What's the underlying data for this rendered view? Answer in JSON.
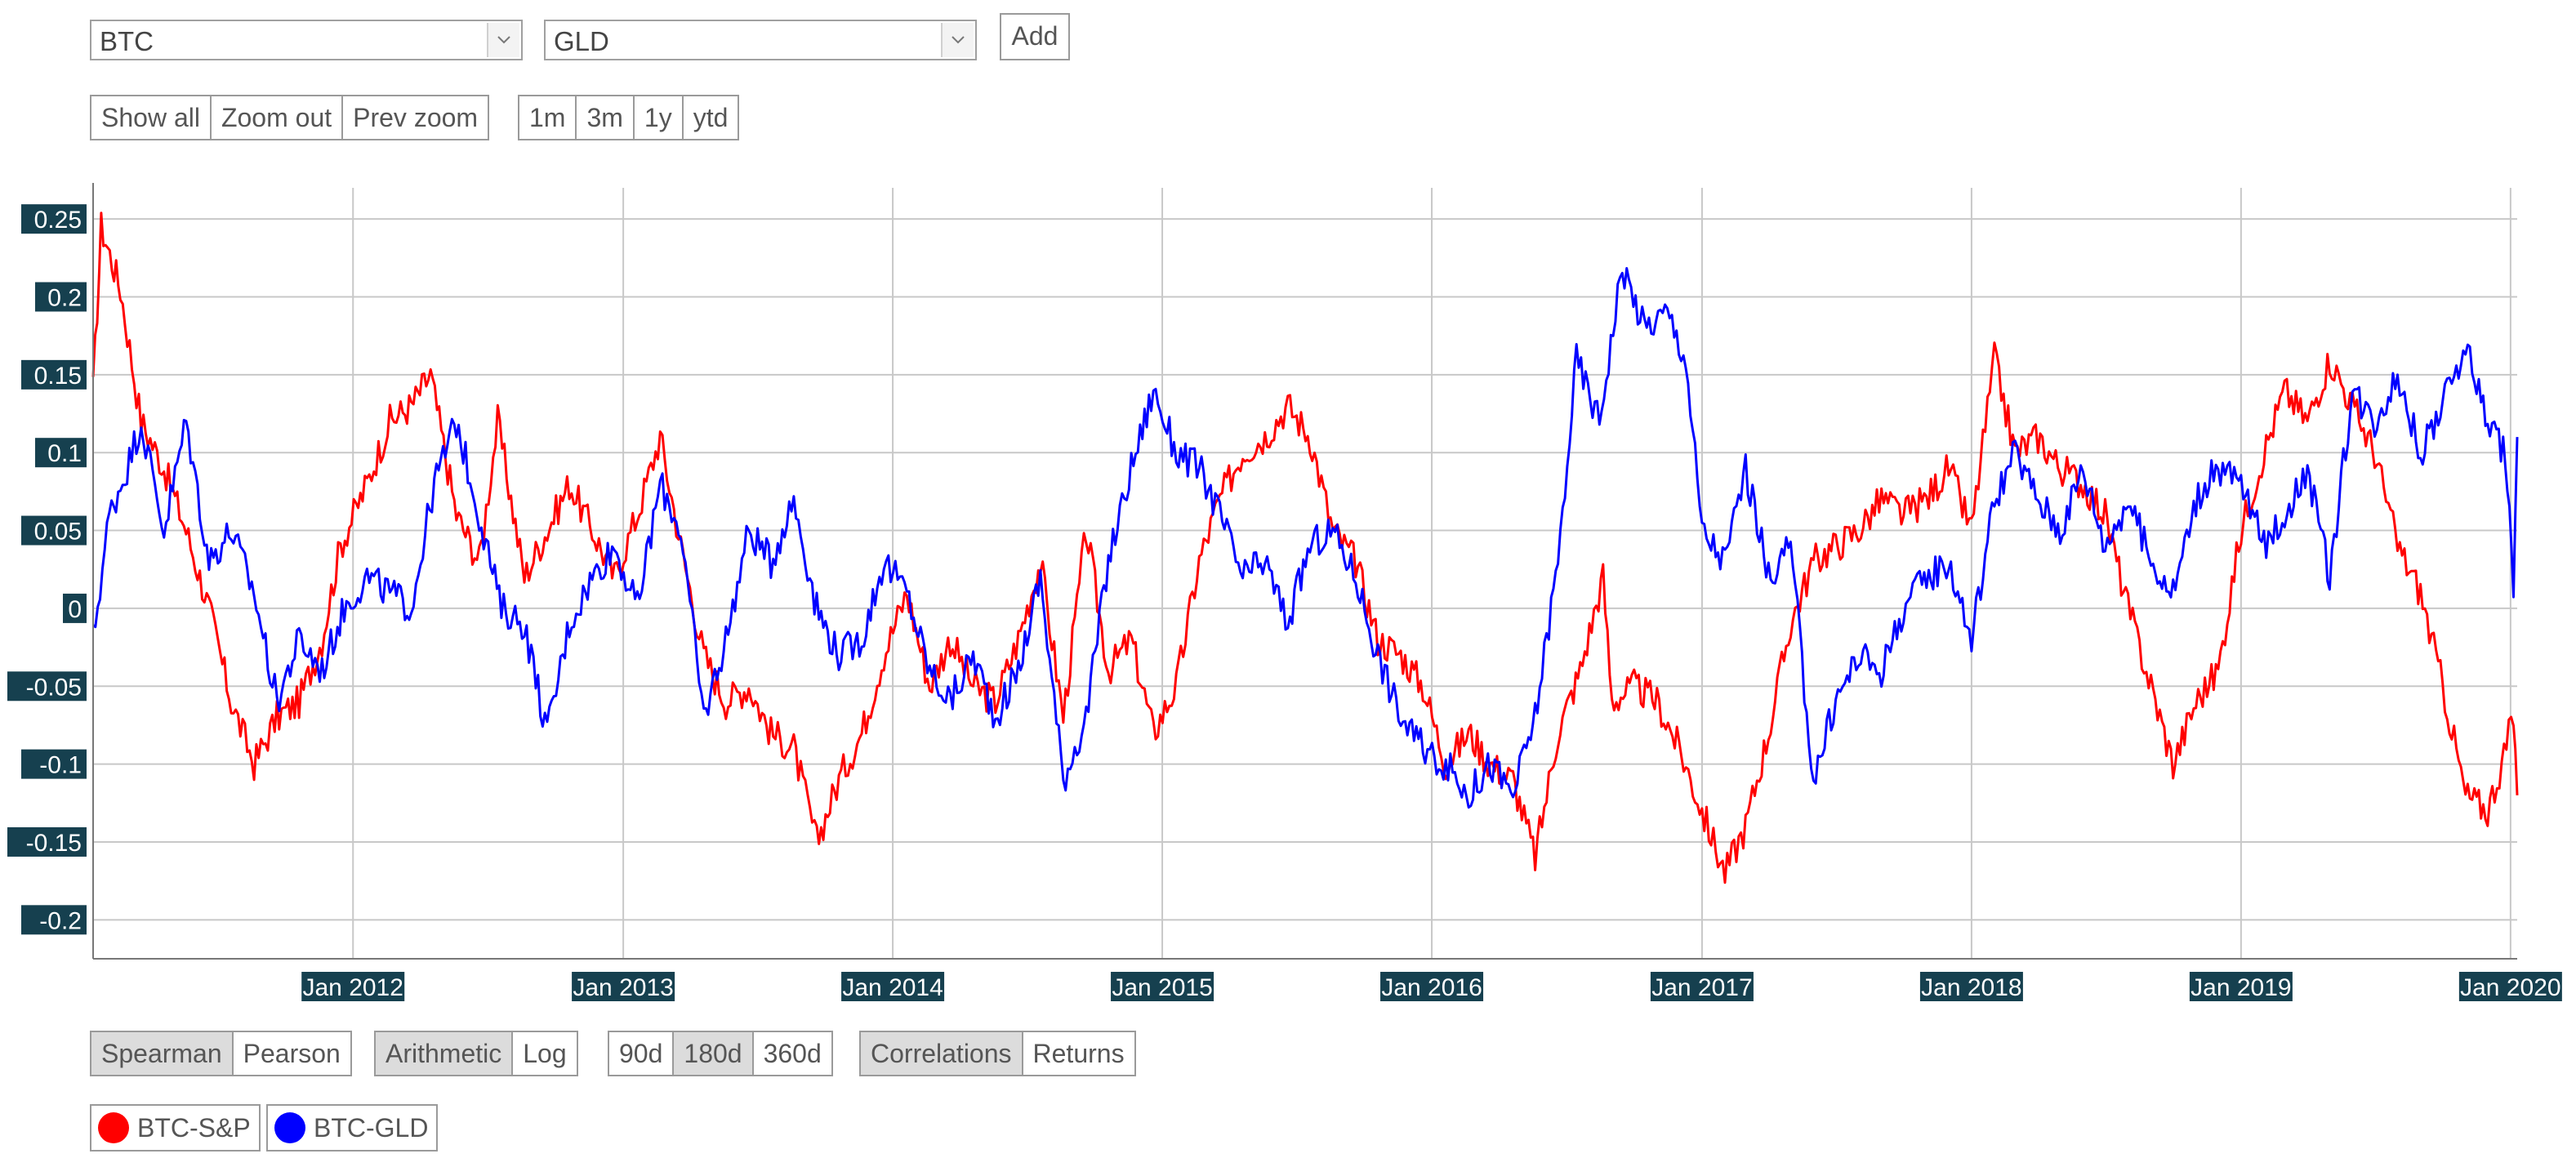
{
  "controls": {
    "asset1": "BTC",
    "asset2": "GLD",
    "add_label": "Add",
    "zoom_buttons": [
      "Show all",
      "Zoom out",
      "Prev zoom"
    ],
    "range_buttons": [
      "1m",
      "3m",
      "1y",
      "ytd"
    ]
  },
  "options": {
    "method": {
      "items": [
        "Spearman",
        "Pearson"
      ],
      "active": "Spearman"
    },
    "scale": {
      "items": [
        "Arithmetic",
        "Log"
      ],
      "active": "Arithmetic"
    },
    "window": {
      "items": [
        "90d",
        "180d",
        "360d"
      ],
      "active": "180d"
    },
    "view": {
      "items": [
        "Correlations",
        "Returns"
      ],
      "active": "Correlations"
    }
  },
  "colors": {
    "btc_sp": "#ff0000",
    "btc_gld": "#0000ff",
    "tick_bg": "#16404f",
    "tick_text": "#ffffff",
    "grid": "#c8c8c8"
  },
  "chart_data": {
    "type": "line",
    "x_ticks": [
      "Jan 2012",
      "Jan 2013",
      "Jan 2014",
      "Jan 2015",
      "Jan 2016",
      "Jan 2017",
      "Jan 2018",
      "Jan 2019",
      "Jan 2020"
    ],
    "y_ticks": [
      "0.25",
      "0.2",
      "0.15",
      "0.1",
      "0.05",
      "0",
      "-0.05",
      "-0.1",
      "-0.15",
      "-0.2"
    ],
    "ylim": [
      -0.225,
      0.27
    ],
    "xlim": [
      "2011-01-14",
      "2020-01-10"
    ],
    "grid": true,
    "series": [
      {
        "name": "BTC-S&P",
        "color": "#ff0000",
        "points": [
          [
            "2011-01-14",
            0.14
          ],
          [
            "2011-01-25",
            0.245
          ],
          [
            "2011-02-20",
            0.205
          ],
          [
            "2011-03-20",
            0.12
          ],
          [
            "2011-04-20",
            0.09
          ],
          [
            "2011-05-20",
            0.05
          ],
          [
            "2011-06-20",
            0.0
          ],
          [
            "2011-07-20",
            -0.06
          ],
          [
            "2011-08-20",
            -0.1
          ],
          [
            "2011-09-20",
            -0.07
          ],
          [
            "2011-10-20",
            -0.06
          ],
          [
            "2011-11-20",
            -0.02
          ],
          [
            "2011-12-15",
            0.04
          ],
          [
            "2012-01-20",
            0.08
          ],
          [
            "2012-02-20",
            0.12
          ],
          [
            "2012-03-20",
            0.13
          ],
          [
            "2012-04-15",
            0.15
          ],
          [
            "2012-05-20",
            0.06
          ],
          [
            "2012-06-20",
            0.03
          ],
          [
            "2012-07-15",
            0.12
          ],
          [
            "2012-08-20",
            0.02
          ],
          [
            "2012-09-20",
            0.05
          ],
          [
            "2012-10-20",
            0.08
          ],
          [
            "2012-11-20",
            0.05
          ],
          [
            "2012-12-20",
            0.02
          ],
          [
            "2013-01-20",
            0.06
          ],
          [
            "2013-02-20",
            0.11
          ],
          [
            "2013-03-20",
            0.04
          ],
          [
            "2013-04-20",
            -0.03
          ],
          [
            "2013-05-20",
            -0.06
          ],
          [
            "2013-06-20",
            -0.05
          ],
          [
            "2013-07-20",
            -0.08
          ],
          [
            "2013-08-20",
            -0.09
          ],
          [
            "2013-09-20",
            -0.15
          ],
          [
            "2013-10-20",
            -0.11
          ],
          [
            "2013-11-20",
            -0.08
          ],
          [
            "2013-12-20",
            -0.03
          ],
          [
            "2014-01-20",
            0.01
          ],
          [
            "2014-02-20",
            -0.05
          ],
          [
            "2014-03-20",
            -0.02
          ],
          [
            "2014-04-20",
            -0.05
          ],
          [
            "2014-05-20",
            -0.06
          ],
          [
            "2014-06-20",
            -0.02
          ],
          [
            "2014-07-20",
            0.03
          ],
          [
            "2014-08-20",
            -0.07
          ],
          [
            "2014-09-20",
            0.05
          ],
          [
            "2014-10-20",
            -0.04
          ],
          [
            "2014-11-20",
            -0.02
          ],
          [
            "2014-12-20",
            -0.08
          ],
          [
            "2015-01-20",
            -0.05
          ],
          [
            "2015-02-20",
            0.03
          ],
          [
            "2015-03-20",
            0.07
          ],
          [
            "2015-04-20",
            0.1
          ],
          [
            "2015-05-20",
            0.11
          ],
          [
            "2015-06-20",
            0.13
          ],
          [
            "2015-07-20",
            0.11
          ],
          [
            "2015-08-20",
            0.05
          ],
          [
            "2015-09-20",
            0.03
          ],
          [
            "2015-10-20",
            -0.02
          ],
          [
            "2015-11-20",
            -0.03
          ],
          [
            "2015-12-20",
            -0.05
          ],
          [
            "2016-01-20",
            -0.1
          ],
          [
            "2016-02-20",
            -0.08
          ],
          [
            "2016-03-20",
            -0.1
          ],
          [
            "2016-04-20",
            -0.11
          ],
          [
            "2016-05-20",
            -0.16
          ],
          [
            "2016-06-20",
            -0.08
          ],
          [
            "2016-07-20",
            -0.04
          ],
          [
            "2016-08-20",
            0.02
          ],
          [
            "2016-09-01",
            -0.06
          ],
          [
            "2016-10-01",
            -0.05
          ],
          [
            "2016-11-01",
            -0.06
          ],
          [
            "2016-12-01",
            -0.09
          ],
          [
            "2017-01-01",
            -0.13
          ],
          [
            "2017-02-01",
            -0.17
          ],
          [
            "2017-03-01",
            -0.14
          ],
          [
            "2017-04-01",
            -0.08
          ],
          [
            "2017-05-01",
            -0.01
          ],
          [
            "2017-06-01",
            0.03
          ],
          [
            "2017-07-01",
            0.04
          ],
          [
            "2017-08-01",
            0.05
          ],
          [
            "2017-09-01",
            0.07
          ],
          [
            "2017-10-01",
            0.06
          ],
          [
            "2017-11-01",
            0.07
          ],
          [
            "2017-12-01",
            0.09
          ],
          [
            "2018-01-01",
            0.05
          ],
          [
            "2018-02-01",
            0.16
          ],
          [
            "2018-03-01",
            0.1
          ],
          [
            "2018-04-01",
            0.11
          ],
          [
            "2018-05-01",
            0.09
          ],
          [
            "2018-06-01",
            0.08
          ],
          [
            "2018-07-01",
            0.06
          ],
          [
            "2018-08-01",
            0.0
          ],
          [
            "2018-09-01",
            -0.05
          ],
          [
            "2018-10-01",
            -0.1
          ],
          [
            "2018-11-01",
            -0.06
          ],
          [
            "2018-12-01",
            -0.04
          ],
          [
            "2019-01-01",
            0.05
          ],
          [
            "2019-02-01",
            0.1
          ],
          [
            "2019-03-01",
            0.14
          ],
          [
            "2019-04-01",
            0.12
          ],
          [
            "2019-05-01",
            0.16
          ],
          [
            "2019-06-01",
            0.13
          ],
          [
            "2019-07-01",
            0.1
          ],
          [
            "2019-08-01",
            0.04
          ],
          [
            "2019-09-01",
            0.01
          ],
          [
            "2019-10-01",
            -0.05
          ],
          [
            "2019-11-01",
            -0.12
          ],
          [
            "2019-12-01",
            -0.13
          ],
          [
            "2019-12-20",
            -0.1
          ],
          [
            "2020-01-05",
            -0.07
          ],
          [
            "2020-01-10",
            -0.12
          ]
        ]
      },
      {
        "name": "BTC-GLD",
        "color": "#0000ff",
        "points": [
          [
            "2011-01-14",
            -0.02
          ],
          [
            "2011-02-05",
            0.06
          ],
          [
            "2011-03-01",
            0.09
          ],
          [
            "2011-03-20",
            0.12
          ],
          [
            "2011-04-20",
            0.05
          ],
          [
            "2011-05-20",
            0.12
          ],
          [
            "2011-06-20",
            0.03
          ],
          [
            "2011-07-20",
            0.05
          ],
          [
            "2011-08-20",
            0.01
          ],
          [
            "2011-09-20",
            -0.06
          ],
          [
            "2011-10-20",
            -0.02
          ],
          [
            "2011-11-20",
            -0.04
          ],
          [
            "2011-12-20",
            0.0
          ],
          [
            "2012-01-20",
            0.02
          ],
          [
            "2012-02-20",
            0.01
          ],
          [
            "2012-03-20",
            0.0
          ],
          [
            "2012-04-20",
            0.08
          ],
          [
            "2012-05-20",
            0.12
          ],
          [
            "2012-06-20",
            0.06
          ],
          [
            "2012-07-20",
            0.0
          ],
          [
            "2012-08-20",
            -0.01
          ],
          [
            "2012-09-20",
            -0.08
          ],
          [
            "2012-10-20",
            -0.01
          ],
          [
            "2012-11-20",
            0.02
          ],
          [
            "2012-12-20",
            0.04
          ],
          [
            "2013-01-20",
            0.0
          ],
          [
            "2013-02-20",
            0.08
          ],
          [
            "2013-03-20",
            0.05
          ],
          [
            "2013-04-20",
            -0.07
          ],
          [
            "2013-05-20",
            -0.02
          ],
          [
            "2013-06-20",
            0.05
          ],
          [
            "2013-07-20",
            0.03
          ],
          [
            "2013-08-20",
            0.07
          ],
          [
            "2013-09-20",
            0.0
          ],
          [
            "2013-10-20",
            -0.03
          ],
          [
            "2013-11-20",
            -0.02
          ],
          [
            "2013-12-20",
            0.03
          ],
          [
            "2014-01-20",
            0.01
          ],
          [
            "2014-02-20",
            -0.04
          ],
          [
            "2014-03-20",
            -0.06
          ],
          [
            "2014-04-20",
            -0.03
          ],
          [
            "2014-05-20",
            -0.07
          ],
          [
            "2014-06-20",
            -0.04
          ],
          [
            "2014-07-20",
            0.02
          ],
          [
            "2014-08-20",
            -0.11
          ],
          [
            "2014-09-20",
            -0.07
          ],
          [
            "2014-10-20",
            0.03
          ],
          [
            "2014-11-20",
            0.09
          ],
          [
            "2014-12-20",
            0.14
          ],
          [
            "2015-01-20",
            0.1
          ],
          [
            "2015-02-20",
            0.09
          ],
          [
            "2015-03-20",
            0.06
          ],
          [
            "2015-04-20",
            0.02
          ],
          [
            "2015-05-20",
            0.03
          ],
          [
            "2015-06-20",
            -0.01
          ],
          [
            "2015-07-20",
            0.04
          ],
          [
            "2015-08-20",
            0.05
          ],
          [
            "2015-09-20",
            0.02
          ],
          [
            "2015-10-20",
            -0.03
          ],
          [
            "2015-11-20",
            -0.07
          ],
          [
            "2015-12-20",
            -0.09
          ],
          [
            "2016-01-20",
            -0.1
          ],
          [
            "2016-02-20",
            -0.12
          ],
          [
            "2016-03-20",
            -0.1
          ],
          [
            "2016-04-20",
            -0.12
          ],
          [
            "2016-05-20",
            -0.07
          ],
          [
            "2016-06-20",
            0.03
          ],
          [
            "2016-07-15",
            0.16
          ],
          [
            "2016-08-15",
            0.12
          ],
          [
            "2016-09-15",
            0.22
          ],
          [
            "2016-10-15",
            0.18
          ],
          [
            "2016-11-15",
            0.19
          ],
          [
            "2016-12-10",
            0.16
          ],
          [
            "2017-01-01",
            0.05
          ],
          [
            "2017-02-01",
            0.03
          ],
          [
            "2017-03-01",
            0.09
          ],
          [
            "2017-04-01",
            0.02
          ],
          [
            "2017-05-01",
            0.04
          ],
          [
            "2017-06-01",
            -0.11
          ],
          [
            "2017-07-01",
            -0.06
          ],
          [
            "2017-08-01",
            -0.03
          ],
          [
            "2017-09-01",
            -0.04
          ],
          [
            "2017-10-01",
            0.0
          ],
          [
            "2017-11-01",
            0.02
          ],
          [
            "2017-12-01",
            0.03
          ],
          [
            "2018-01-01",
            -0.02
          ],
          [
            "2018-02-01",
            0.07
          ],
          [
            "2018-03-01",
            0.1
          ],
          [
            "2018-04-01",
            0.07
          ],
          [
            "2018-05-01",
            0.05
          ],
          [
            "2018-06-01",
            0.09
          ],
          [
            "2018-07-01",
            0.04
          ],
          [
            "2018-08-01",
            0.07
          ],
          [
            "2018-09-01",
            0.03
          ],
          [
            "2018-10-01",
            0.01
          ],
          [
            "2018-11-01",
            0.07
          ],
          [
            "2018-12-01",
            0.09
          ],
          [
            "2019-01-01",
            0.08
          ],
          [
            "2019-02-01",
            0.04
          ],
          [
            "2019-03-01",
            0.06
          ],
          [
            "2019-04-01",
            0.09
          ],
          [
            "2019-05-01",
            0.02
          ],
          [
            "2019-06-01",
            0.14
          ],
          [
            "2019-07-01",
            0.12
          ],
          [
            "2019-08-01",
            0.15
          ],
          [
            "2019-09-01",
            0.1
          ],
          [
            "2019-10-01",
            0.13
          ],
          [
            "2019-11-01",
            0.17
          ],
          [
            "2019-12-01",
            0.12
          ],
          [
            "2019-12-25",
            0.1
          ],
          [
            "2020-01-05",
            0.01
          ],
          [
            "2020-01-10",
            0.11
          ]
        ]
      }
    ]
  },
  "legend": [
    {
      "label": "BTC-S&P",
      "color": "#ff0000"
    },
    {
      "label": "BTC-GLD",
      "color": "#0000ff"
    }
  ]
}
